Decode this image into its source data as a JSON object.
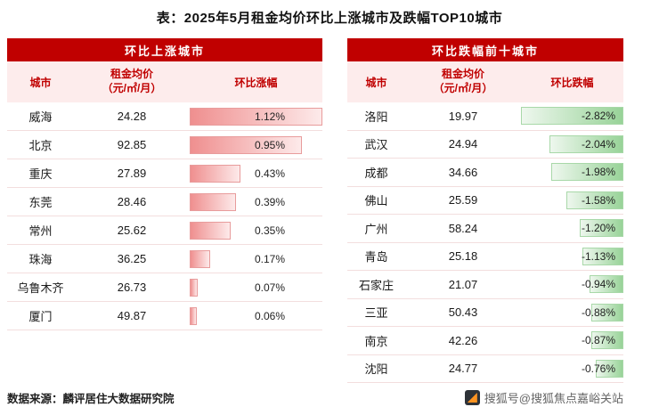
{
  "page": {
    "title": "表：2025年5月租金均价环比上涨城市及跌幅TOP10城市",
    "source_note": "数据来源：麟评居住大数据研究院",
    "watermark_text": "搜狐号@搜狐焦点嘉峪关站"
  },
  "colors": {
    "header_red": "#c00000",
    "header_text": "#ffffff",
    "subheader_bg": "#fdecec",
    "subheader_text": "#c00000",
    "row_border": "#f3dede",
    "rise_bar_strong": "#ef8f8f",
    "rise_bar_light": "#fdeaea",
    "rise_bar_border": "#e89c9c",
    "fall_bar_strong": "#98d398",
    "fall_bar_light": "#eef7ee",
    "fall_bar_border": "#a8d8a8",
    "text": "#1a1a1a",
    "watermark_text": "#666666"
  },
  "chart_data": [
    {
      "type": "table",
      "section_title": "环比上涨城市",
      "columns": {
        "city": "城市",
        "price_line1": "租金均价",
        "price_line2": "（元/㎡/月）",
        "change": "环比涨幅"
      },
      "bar": {
        "color": "red",
        "anchor": "left",
        "max_abs_pct": 1.12
      },
      "rows": [
        {
          "city": "威海",
          "price": "24.28",
          "change": "1.12%",
          "value": 1.12
        },
        {
          "city": "北京",
          "price": "92.85",
          "change": "0.95%",
          "value": 0.95
        },
        {
          "city": "重庆",
          "price": "27.89",
          "change": "0.43%",
          "value": 0.43
        },
        {
          "city": "东莞",
          "price": "28.46",
          "change": "0.39%",
          "value": 0.39
        },
        {
          "city": "常州",
          "price": "25.62",
          "change": "0.35%",
          "value": 0.35
        },
        {
          "city": "珠海",
          "price": "36.25",
          "change": "0.17%",
          "value": 0.17
        },
        {
          "city": "乌鲁木齐",
          "price": "26.73",
          "change": "0.07%",
          "value": 0.07
        },
        {
          "city": "厦门",
          "price": "49.87",
          "change": "0.06%",
          "value": 0.06
        }
      ]
    },
    {
      "type": "table",
      "section_title": "环比跌幅前十城市",
      "columns": {
        "city": "城市",
        "price_line1": "租金均价",
        "price_line2": "（元/㎡/月）",
        "change": "环比跌幅"
      },
      "bar": {
        "color": "green",
        "anchor": "right",
        "max_abs_pct": 2.82
      },
      "rows": [
        {
          "city": "洛阳",
          "price": "19.97",
          "change": "-2.82%",
          "value": -2.82
        },
        {
          "city": "武汉",
          "price": "24.94",
          "change": "-2.04%",
          "value": -2.04
        },
        {
          "city": "成都",
          "price": "34.66",
          "change": "-1.98%",
          "value": -1.98
        },
        {
          "city": "佛山",
          "price": "25.59",
          "change": "-1.58%",
          "value": -1.58
        },
        {
          "city": "广州",
          "price": "58.24",
          "change": "-1.20%",
          "value": -1.2
        },
        {
          "city": "青岛",
          "price": "25.18",
          "change": "-1.13%",
          "value": -1.13
        },
        {
          "city": "石家庄",
          "price": "21.07",
          "change": "-0.94%",
          "value": -0.94
        },
        {
          "city": "三亚",
          "price": "50.43",
          "change": "-0.88%",
          "value": -0.88
        },
        {
          "city": "南京",
          "price": "42.26",
          "change": "-0.87%",
          "value": -0.87
        },
        {
          "city": "沈阳",
          "price": "24.77",
          "change": "-0.76%",
          "value": -0.76
        }
      ]
    }
  ]
}
